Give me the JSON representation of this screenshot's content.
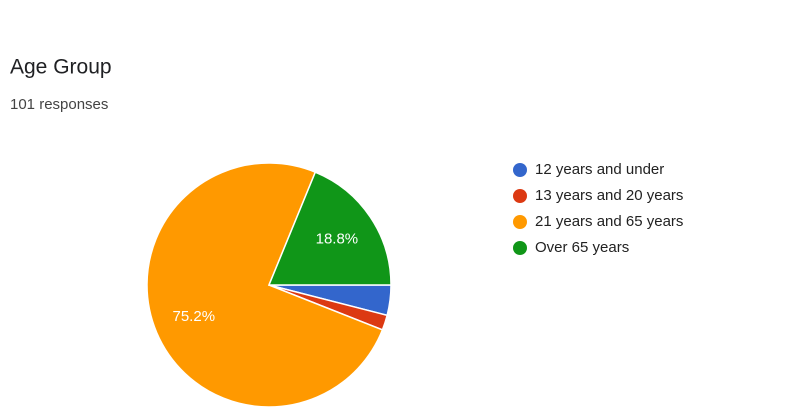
{
  "chart_data": {
    "type": "pie",
    "title": "Age Group",
    "subtitle": "101 responses",
    "categories": [
      "12 years and under",
      "13 years and 20 years",
      "21 years and 65 years",
      "Over 65 years"
    ],
    "values": [
      4.0,
      2.0,
      75.2,
      18.8
    ],
    "value_labels": [
      null,
      null,
      "75.2%",
      "18.8%"
    ],
    "colors": [
      "#3366cc",
      "#dc3912",
      "#ff9900",
      "#109618"
    ],
    "legend": "right"
  }
}
